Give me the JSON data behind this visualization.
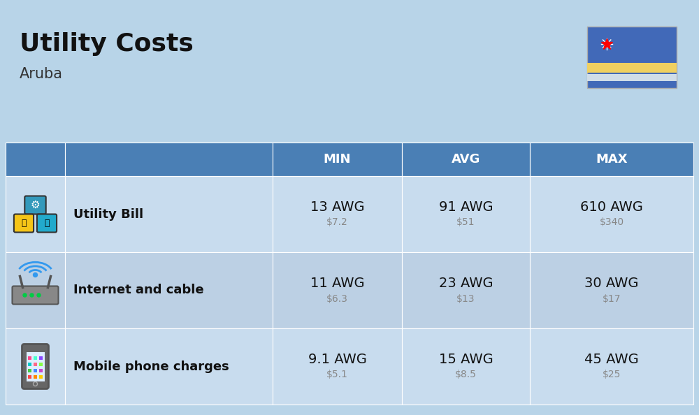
{
  "title": "Utility Costs",
  "subtitle": "Aruba",
  "bg_color": "#b8d4e8",
  "header_bg": "#4a7fb5",
  "header_fg": "#ffffff",
  "row_bg_odd": "#c8dcee",
  "row_bg_even": "#bcd0e4",
  "col_headers": [
    "MIN",
    "AVG",
    "MAX"
  ],
  "rows": [
    {
      "label": "Utility Bill",
      "min_awg": "13 AWG",
      "min_usd": "$7.2",
      "avg_awg": "91 AWG",
      "avg_usd": "$51",
      "max_awg": "610 AWG",
      "max_usd": "$340",
      "icon": "utility"
    },
    {
      "label": "Internet and cable",
      "min_awg": "11 AWG",
      "min_usd": "$6.3",
      "avg_awg": "23 AWG",
      "avg_usd": "$13",
      "max_awg": "30 AWG",
      "max_usd": "$17",
      "icon": "internet"
    },
    {
      "label": "Mobile phone charges",
      "min_awg": "9.1 AWG",
      "min_usd": "$5.1",
      "avg_awg": "15 AWG",
      "avg_usd": "$8.5",
      "max_awg": "45 AWG",
      "max_usd": "$25",
      "icon": "mobile"
    }
  ],
  "title_fontsize": 26,
  "subtitle_fontsize": 15,
  "header_fontsize": 13,
  "label_fontsize": 13,
  "value_fontsize": 14,
  "usd_fontsize": 10,
  "flag_colors": {
    "bg": "#4169b8",
    "stripe1": "#f0d060",
    "stripe2": "#d0dde8"
  }
}
